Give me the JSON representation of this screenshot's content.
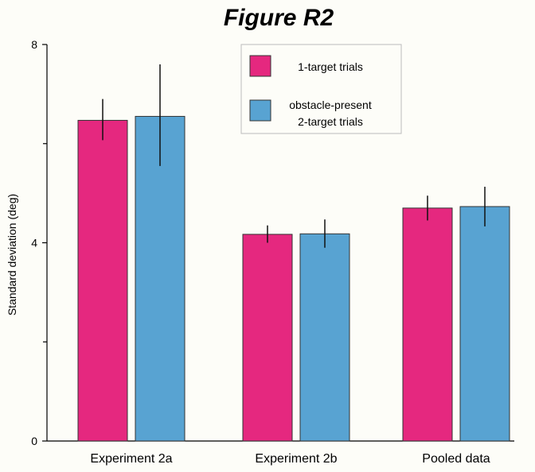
{
  "chart_data": {
    "type": "bar",
    "title": "Figure R2",
    "xlabel": "",
    "ylabel": "Standard deviation (deg)",
    "ylim": [
      0,
      8
    ],
    "yticks": [
      0,
      4,
      8
    ],
    "yticks_minor": [
      2,
      6
    ],
    "grid": false,
    "legend_position": "top-center",
    "categories": [
      "Experiment 2a",
      "Experiment 2b",
      "Pooled data"
    ],
    "series": [
      {
        "name": "1-target trials",
        "color": "#e5287f",
        "values": [
          6.47,
          4.17,
          4.7
        ],
        "err_low": [
          6.07,
          4.0,
          4.45
        ],
        "err_high": [
          6.9,
          4.35,
          4.95
        ]
      },
      {
        "name": "obstacle-present 2-target trials",
        "legend_lines": [
          "obstacle-present",
          "2-target trials"
        ],
        "color": "#58a3d2",
        "values": [
          6.55,
          4.18,
          4.73
        ],
        "err_low": [
          5.55,
          3.9,
          4.33
        ],
        "err_high": [
          7.6,
          4.47,
          5.13
        ]
      }
    ]
  }
}
